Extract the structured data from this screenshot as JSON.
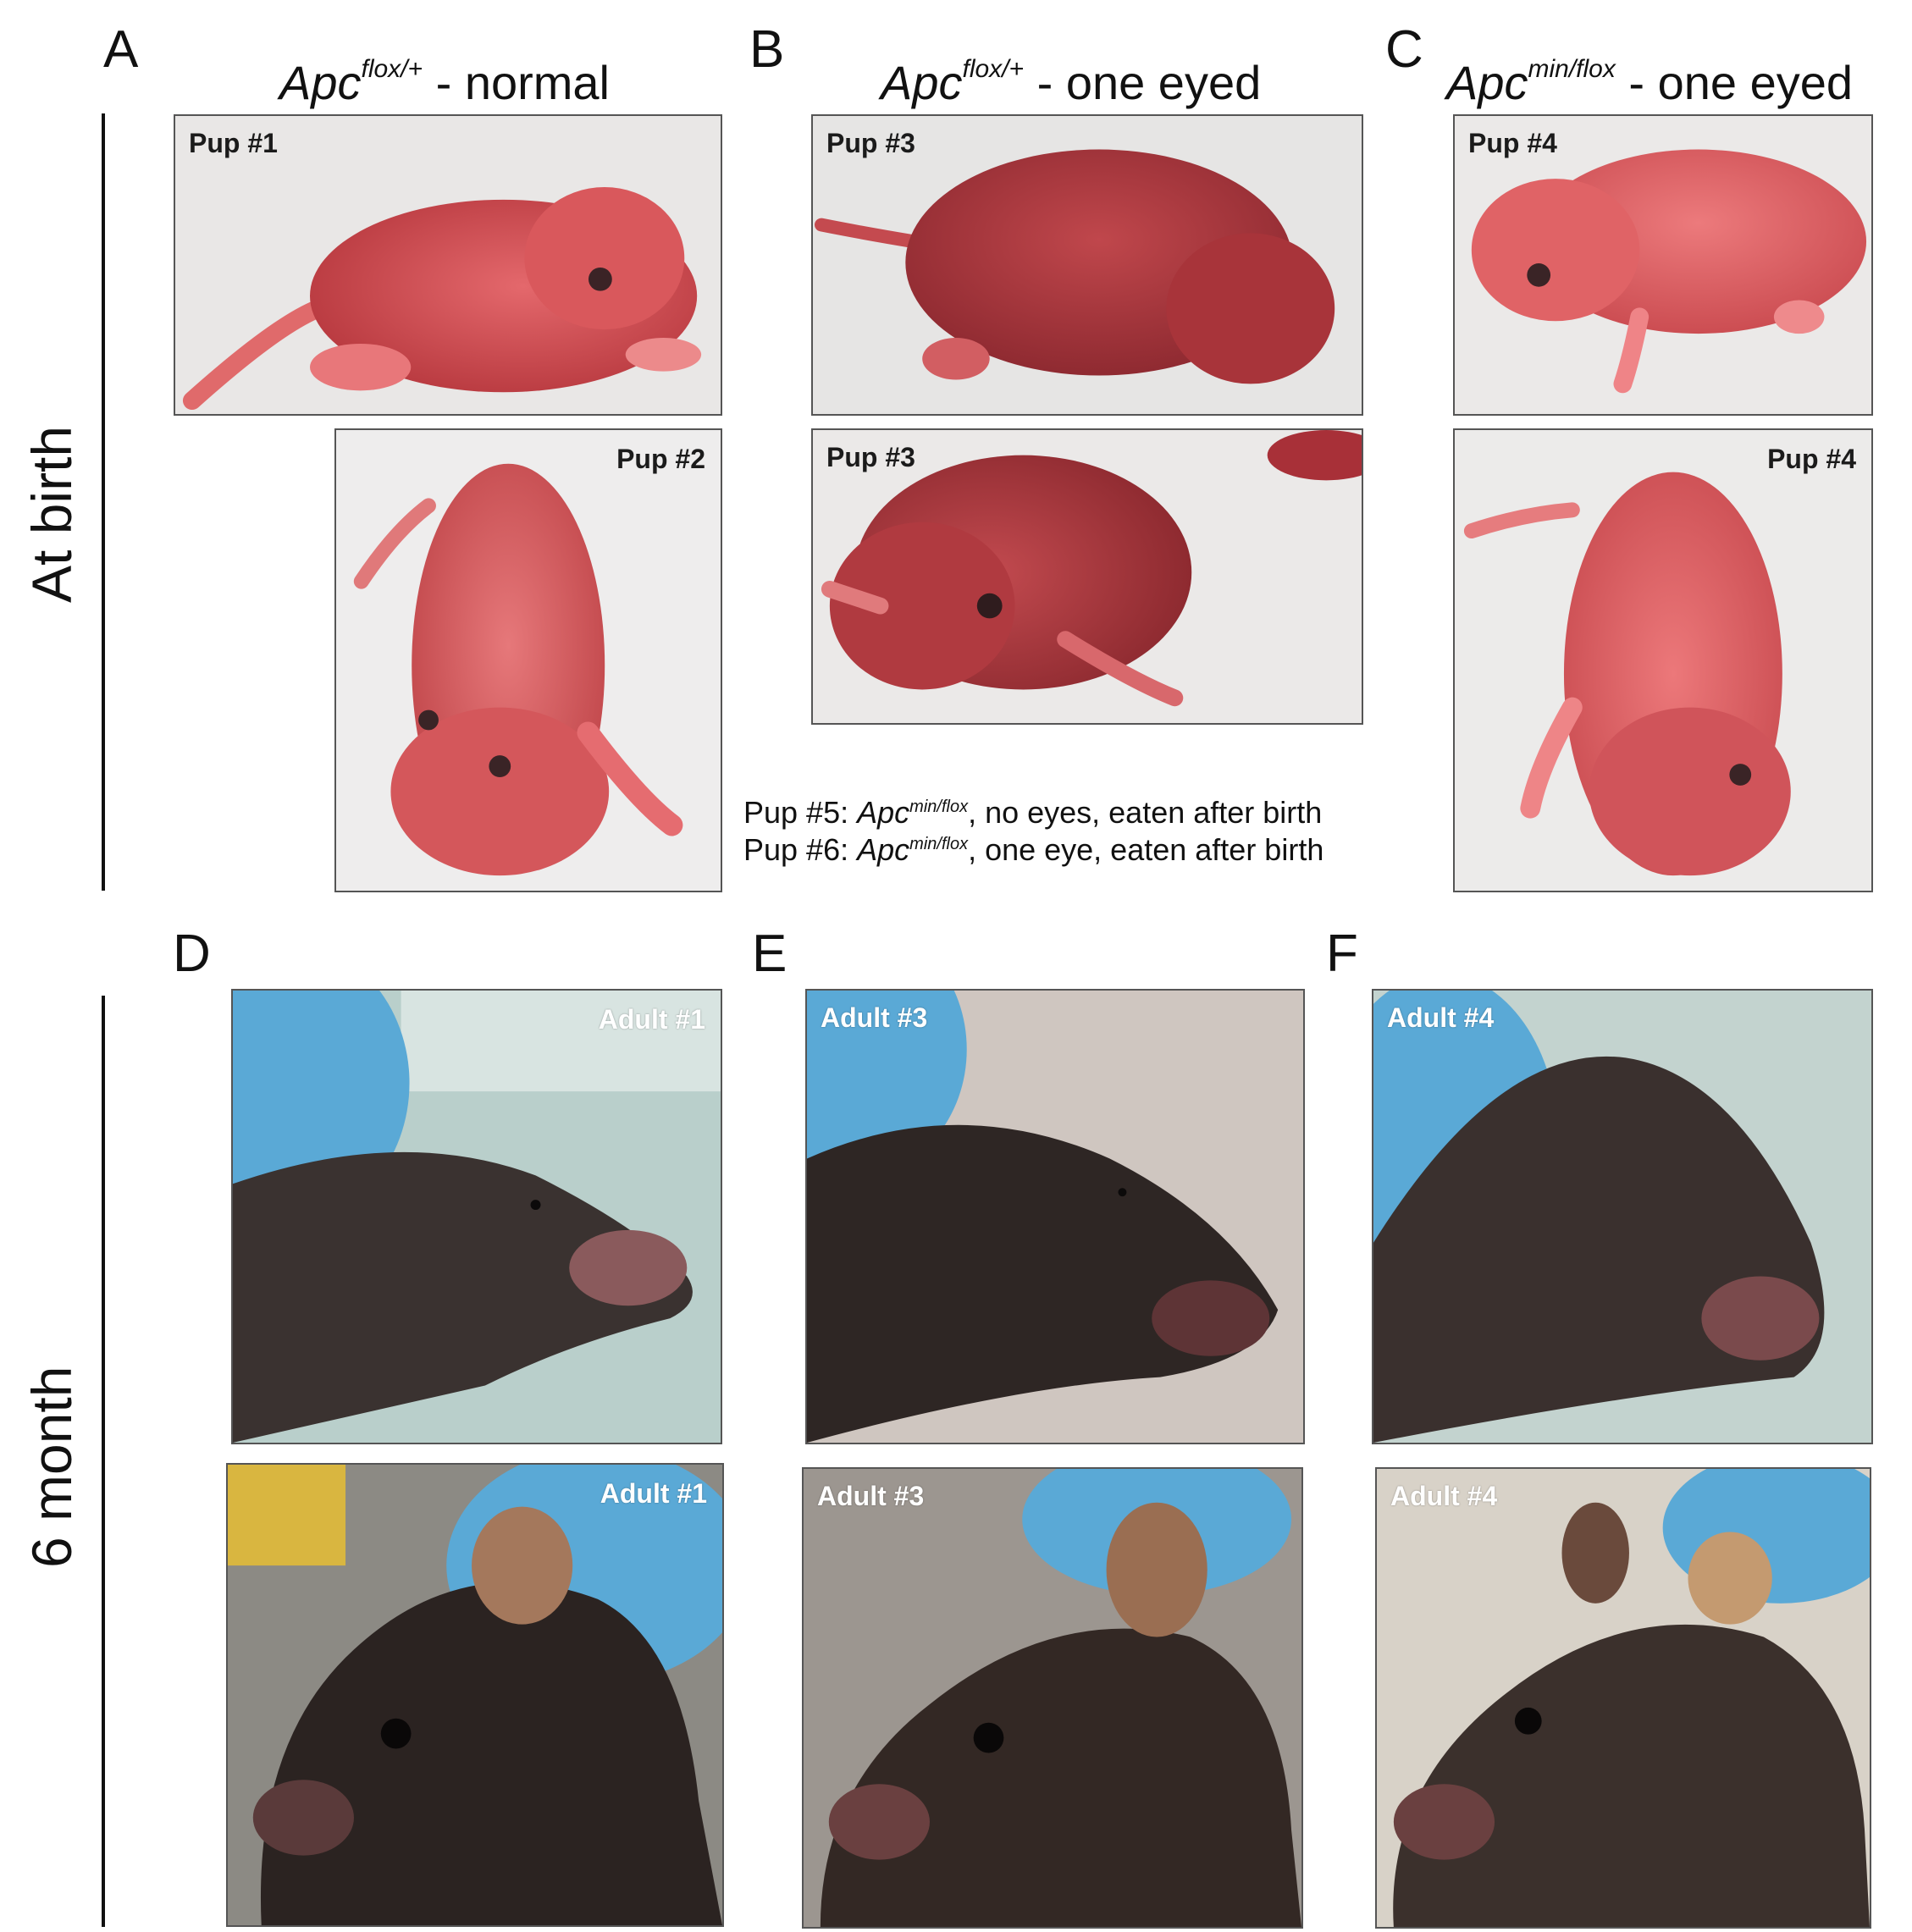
{
  "panels": {
    "A": "A",
    "B": "B",
    "C": "C",
    "D": "D",
    "E": "E",
    "F": "F"
  },
  "column_titles": {
    "a": {
      "gene": "Apc",
      "sup": "flox/+",
      "suffix": " - normal"
    },
    "b": {
      "gene": "Apc",
      "sup": "flox/+",
      "suffix": " - one eyed"
    },
    "c": {
      "gene": "Apc",
      "sup": "min/flox",
      "suffix": " - one eyed"
    }
  },
  "row_labels": {
    "top": "At birth",
    "bottom": "6 month"
  },
  "photo_labels": {
    "a1": "Pup #1",
    "a2": "Pup #2",
    "b1": "Pup #3",
    "b2": "Pup #3",
    "c1": "Pup #4",
    "c2": "Pup #4",
    "d1": "Adult #1",
    "d2": "Adult #1",
    "e1": "Adult #3",
    "e2": "Adult #3",
    "f1": "Adult #4",
    "f2": "Adult #4"
  },
  "notes": {
    "pup5": {
      "prefix": "Pup #5: ",
      "gene": "Apc",
      "sup": "min/flox",
      "suffix": ", no eyes, eaten after birth"
    },
    "pup6": {
      "prefix": "Pup #6: ",
      "gene": "Apc",
      "sup": "min/flox",
      "suffix": ", one eye, eaten after birth"
    }
  },
  "colors": {
    "pup_skin": "#d9585c",
    "pup_dark": "#a8343a",
    "bg_white": "#efefef",
    "mouse_fur": "#3a3230",
    "glove_blue": "#5aa9d6"
  }
}
